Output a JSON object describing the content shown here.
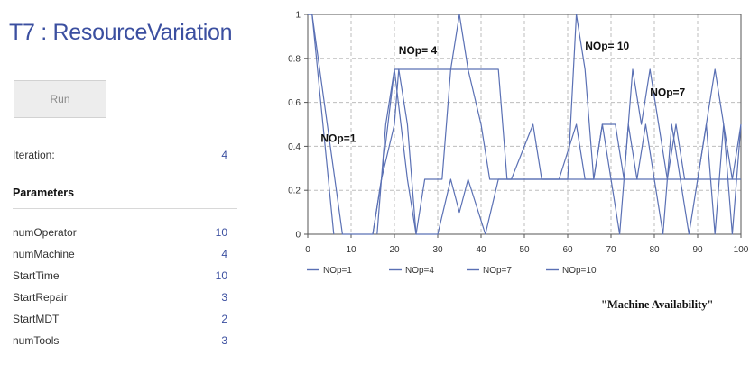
{
  "app": {
    "title": "T7 : ResourceVariation",
    "run_label": "Run"
  },
  "iteration": {
    "label": "Iteration:",
    "value": "4"
  },
  "parameters": {
    "heading": "Parameters",
    "items": [
      {
        "name": "numOperator",
        "value": "10"
      },
      {
        "name": "numMachine",
        "value": "4"
      },
      {
        "name": "StartTime",
        "value": "10"
      },
      {
        "name": "StartRepair",
        "value": "3"
      },
      {
        "name": "StartMDT",
        "value": "2"
      },
      {
        "name": "numTools",
        "value": "3"
      }
    ]
  },
  "caption": "\"Machine Availability\"",
  "colors": {
    "accent": "#3b4fa0",
    "series": "#5a70b4"
  },
  "chart_data": {
    "type": "line",
    "xlim": [
      0,
      100
    ],
    "ylim": [
      0,
      1
    ],
    "xticks": [
      "0",
      "10",
      "20",
      "30",
      "40",
      "50",
      "60",
      "70",
      "80",
      "90",
      "100"
    ],
    "yticks": [
      "0",
      "0.2",
      "0.4",
      "0.6",
      "0.8",
      "1"
    ],
    "grid": true,
    "legend_position": "bottom-left",
    "series": [
      {
        "name": "NOp=1",
        "x": [
          0,
          1,
          6
        ],
        "y": [
          1,
          1,
          0
        ]
      },
      {
        "name": "NOp=4",
        "x": [
          0,
          1,
          8,
          15,
          17,
          20,
          22,
          44,
          46,
          100
        ],
        "y": [
          1,
          1,
          0,
          0,
          0.25,
          0.75,
          0.75,
          0.75,
          0.25,
          0.25
        ]
      },
      {
        "name": "NOp=7",
        "x": [
          15,
          17,
          20,
          21,
          23,
          25,
          30,
          33,
          35,
          37,
          41,
          44,
          47,
          52,
          54,
          58,
          62,
          64,
          66,
          68,
          71,
          73,
          75,
          77,
          79,
          81,
          83,
          85,
          87,
          90,
          92,
          94,
          96,
          98,
          100
        ],
        "y": [
          0,
          0.25,
          0.5,
          0.75,
          0.5,
          0,
          0,
          0.25,
          0.1,
          0.25,
          0,
          0.25,
          0.25,
          0.5,
          0.25,
          0.25,
          0.5,
          0.25,
          0.25,
          0.5,
          0.5,
          0.25,
          0.75,
          0.5,
          0.75,
          0.5,
          0.25,
          0.5,
          0.25,
          0.25,
          0.5,
          0.75,
          0.5,
          0.25,
          0.5
        ]
      },
      {
        "name": "NOp=10",
        "x": [
          16,
          18,
          20,
          23,
          25,
          27,
          31,
          33,
          35,
          37,
          40,
          42,
          60,
          62,
          64,
          66,
          68,
          70,
          72,
          74,
          76,
          78,
          80,
          82,
          84,
          86,
          88,
          90,
          92,
          94,
          95,
          96,
          98,
          100
        ],
        "y": [
          0,
          0.5,
          0.75,
          0.25,
          0,
          0.25,
          0.25,
          0.75,
          1,
          0.75,
          0.5,
          0.25,
          0.25,
          1,
          0.75,
          0.25,
          0.5,
          0.25,
          0,
          0.5,
          0.25,
          0.5,
          0.25,
          0,
          0.5,
          0.25,
          0,
          0.25,
          0.5,
          0,
          0.25,
          0.5,
          0,
          0.5
        ]
      }
    ],
    "annotations": [
      {
        "text": "NOp=1",
        "x": 3,
        "y": 0.42
      },
      {
        "text": "NOp= 4",
        "x": 21,
        "y": 0.82
      },
      {
        "text": "NOp= 10",
        "x": 64,
        "y": 0.84
      },
      {
        "text": "NOp=7",
        "x": 79,
        "y": 0.63
      }
    ]
  }
}
